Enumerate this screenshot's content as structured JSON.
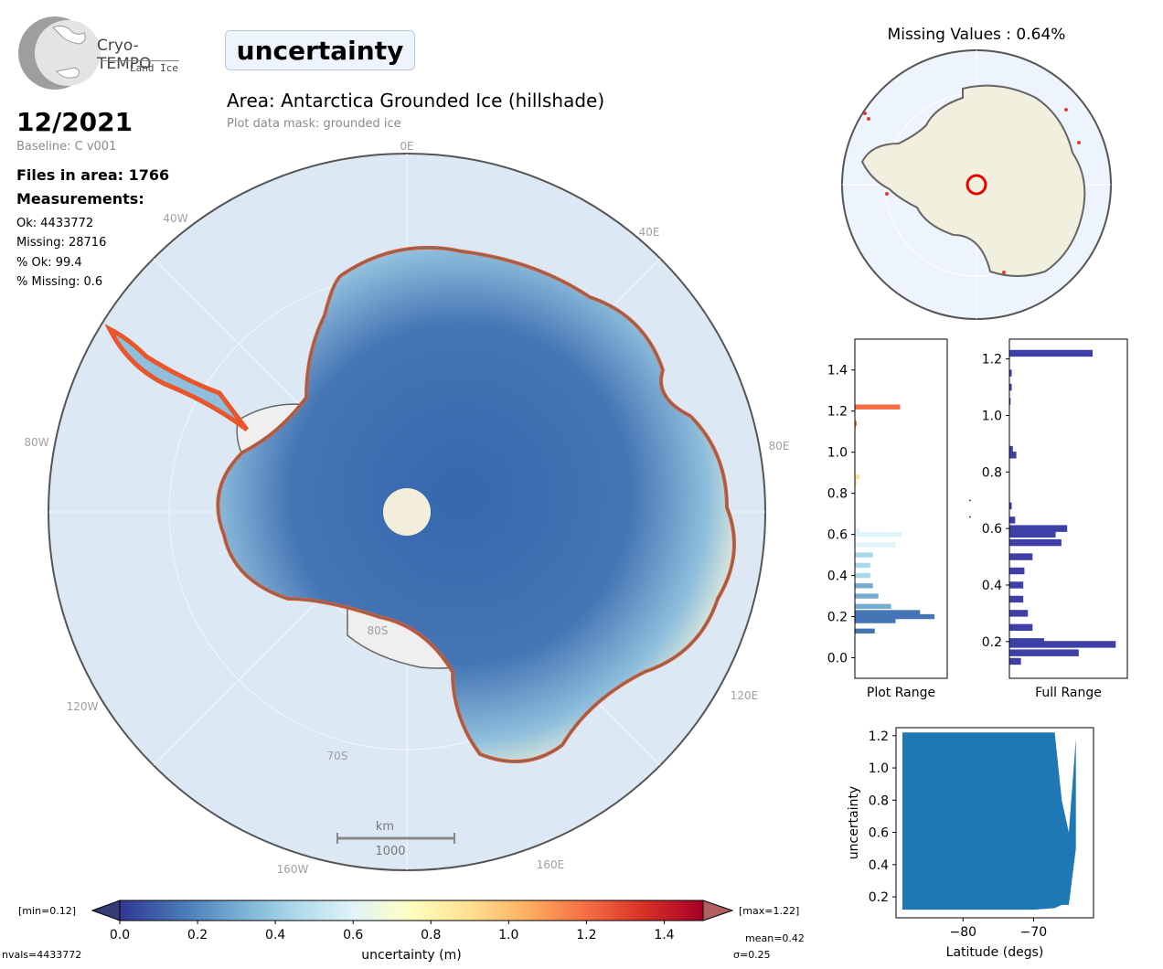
{
  "logo": {
    "name": "Cryo-TEMPO",
    "subtitle": "Land Ice"
  },
  "header": {
    "parameter": "uncertainty",
    "area_title": "Area: Antarctica Grounded Ice (hillshade)",
    "mask_note": "Plot data mask: grounded ice"
  },
  "info": {
    "date": "12/2021",
    "baseline": "Baseline: C v001",
    "files": "Files in area: 1766",
    "measurements_heading": "Measurements:",
    "ok": "Ok: 4433772",
    "missing": "Missing: 28716",
    "pct_ok": "% Ok: 99.4",
    "pct_missing": "% Missing: 0.6"
  },
  "map": {
    "lon_labels": [
      "0E",
      "40E",
      "80E",
      "120E",
      "160E",
      "160W",
      "120W",
      "80W",
      "40W"
    ],
    "lat_labels": [
      "80S",
      "70S"
    ],
    "scale_unit": "km",
    "scale_value": "1000",
    "colors": {
      "ocean": "#dce8f4",
      "interior": "#3f6fb0",
      "coast_high": "#e8562a"
    }
  },
  "inset": {
    "title": "Missing Values : 0.64%"
  },
  "colorbar": {
    "min_label": "[min=0.12]",
    "max_label": "[max=1.22]",
    "ticks": [
      "0.0",
      "0.2",
      "0.4",
      "0.6",
      "0.8",
      "1.0",
      "1.2",
      "1.4"
    ],
    "label": "uncertainty (m)",
    "range": [
      0,
      1.5
    ],
    "colormap": [
      "#313695",
      "#4575b4",
      "#74add1",
      "#abd9e9",
      "#e0f3f8",
      "#ffffbf",
      "#fee090",
      "#fdae61",
      "#f46d43",
      "#d73027",
      "#a50026"
    ]
  },
  "stats": {
    "nvals": "nvals=4433772",
    "mean": "mean=0.42",
    "sigma": "σ=0.25"
  },
  "chart_data": [
    {
      "type": "bar",
      "orientation": "horizontal",
      "xlabel": "Plot Range",
      "ylabel": "",
      "ylim": [
        -0.1,
        1.55
      ],
      "yticks": [
        "0.0",
        "0.2",
        "0.4",
        "0.6",
        "0.8",
        "1.0",
        "1.2",
        "1.4"
      ],
      "bins": [
        [
          0.13,
          0.22
        ],
        [
          0.18,
          0.45
        ],
        [
          0.2,
          0.88
        ],
        [
          0.22,
          0.72
        ],
        [
          0.25,
          0.4
        ],
        [
          0.3,
          0.26
        ],
        [
          0.35,
          0.2
        ],
        [
          0.4,
          0.17
        ],
        [
          0.45,
          0.17
        ],
        [
          0.5,
          0.2
        ],
        [
          0.55,
          0.45
        ],
        [
          0.6,
          0.52
        ],
        [
          0.62,
          0.05
        ],
        [
          0.66,
          0.02
        ],
        [
          0.75,
          0.01
        ],
        [
          0.85,
          0.02
        ],
        [
          0.88,
          0.05
        ],
        [
          1.12,
          0.01
        ],
        [
          1.14,
          0.02
        ],
        [
          1.22,
          0.5
        ]
      ]
    },
    {
      "type": "bar",
      "orientation": "horizontal",
      "xlabel": "Full Range",
      "ylabel": "(m)",
      "ylim": [
        0.07,
        1.27
      ],
      "yticks": [
        "0.2",
        "0.4",
        "0.6",
        "0.8",
        "1.0",
        "1.2"
      ],
      "bins": [
        [
          0.13,
          0.1
        ],
        [
          0.16,
          0.6
        ],
        [
          0.19,
          0.92
        ],
        [
          0.2,
          0.3
        ],
        [
          0.25,
          0.2
        ],
        [
          0.3,
          0.16
        ],
        [
          0.35,
          0.12
        ],
        [
          0.4,
          0.12
        ],
        [
          0.45,
          0.13
        ],
        [
          0.5,
          0.2
        ],
        [
          0.55,
          0.45
        ],
        [
          0.58,
          0.4
        ],
        [
          0.6,
          0.5
        ],
        [
          0.63,
          0.05
        ],
        [
          0.68,
          0.02
        ],
        [
          0.86,
          0.06
        ],
        [
          0.88,
          0.03
        ],
        [
          1.05,
          0.01
        ],
        [
          1.1,
          0.02
        ],
        [
          1.15,
          0.02
        ],
        [
          1.22,
          0.72
        ]
      ]
    },
    {
      "type": "scatter",
      "xlabel": "Latitude (degs)",
      "ylabel": "uncertainty",
      "xlim": [
        -89.5,
        -61.5
      ],
      "ylim": [
        0.07,
        1.25
      ],
      "xticks": [
        "−80",
        "−70"
      ],
      "yticks": [
        "0.2",
        "0.4",
        "0.6",
        "0.8",
        "1.0",
        "1.2"
      ],
      "envelope": [
        [
          -88.6,
          0.12,
          1.22
        ],
        [
          -80,
          0.12,
          1.22
        ],
        [
          -70,
          0.12,
          1.22
        ],
        [
          -67,
          0.13,
          1.22
        ],
        [
          -66,
          0.15,
          0.8
        ],
        [
          -65,
          0.15,
          0.6
        ],
        [
          -64,
          0.5,
          1.18
        ]
      ]
    }
  ]
}
